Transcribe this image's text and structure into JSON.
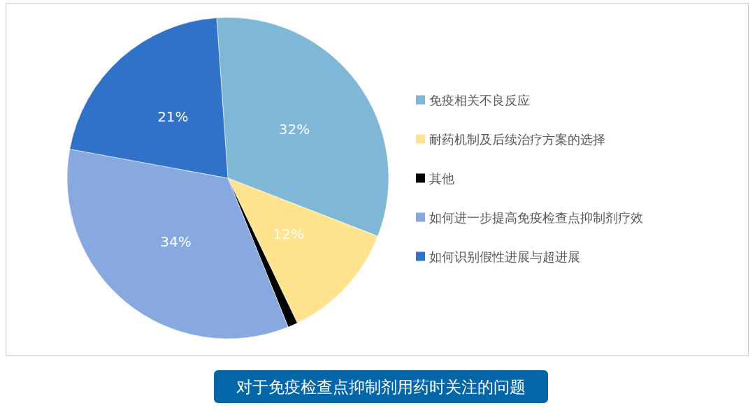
{
  "chart_data": {
    "type": "pie",
    "title": "对于免疫检查点抑制剂用药时关注的问题",
    "categories": [
      "免疫相关不良反应",
      "耐药机制及后续治疗方案的选择",
      "其他",
      "如何进一步提高免疫检查点抑制剂疗效",
      "如何识别假性进展与超进展"
    ],
    "values": [
      32,
      12,
      1,
      34,
      21
    ],
    "colors": [
      "#7fb8d7",
      "#ffe38f",
      "#000000",
      "#87a9e0",
      "#3172c9"
    ],
    "value_labels": [
      "32%",
      "12%",
      null,
      "34%",
      "21%"
    ],
    "legend": "right"
  }
}
